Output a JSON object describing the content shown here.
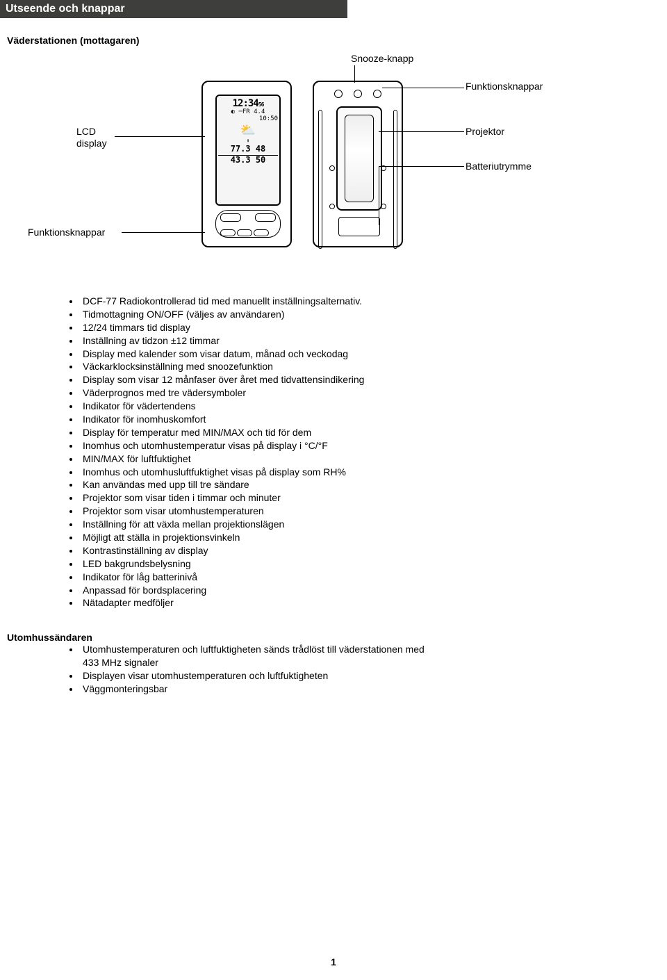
{
  "title": "Utseende och knappar",
  "heading1": "Väderstationen (mottagaren)",
  "callouts": {
    "snooze": "Snooze-knapp",
    "funkbtns": "Funktionsknappar",
    "projektor": "Projektor",
    "battery": "Batteriutrymme",
    "lcd1": "LCD",
    "lcd2": "display",
    "funkbtns2": "Funktionsknappar"
  },
  "features": [
    "DCF-77 Radiokontrollerad tid med manuellt inställningsalternativ.",
    "Tidmottagning ON/OFF (väljes av användaren)",
    "12/24 timmars tid display",
    "Inställning av tidzon ±12 timmar",
    "Display med kalender som visar datum, månad och veckodag",
    "Väckarklocksinställning med snoozefunktion",
    "Display som visar 12 månfaser över året med tidvattensindikering",
    "Väderprognos med tre vädersymboler",
    "Indikator för vädertendens",
    "Indikator för inomhuskomfort",
    "Display för temperatur med MIN/MAX och tid för dem",
    "Inomhus och utomhustemperatur visas på display i °C/°F",
    "MIN/MAX för luftfuktighet",
    "Inomhus och utomhusluftfuktighet visas på display som RH%",
    "Kan användas med upp till tre sändare",
    "Projektor som visar tiden i timmar och minuter",
    "Projektor som visar utomhustemperaturen",
    "Inställning för att växla mellan projektionslägen",
    "Möjligt att ställa in projektionsvinkeln",
    "Kontrastinställning av display",
    "LED bakgrundsbelysning",
    "Indikator för låg batterinivå",
    "Anpassad för bordsplacering",
    "Nätadapter medföljer"
  ],
  "heading2": "Utomhussändaren",
  "sender": [
    "Utomhustemperaturen och luftfuktigheten sänds trådlöst till väderstationen med 433 MHz signaler",
    "Displayen visar utomhustemperaturen och luftfuktigheten",
    "Väggmonteringsbar"
  ],
  "page": "1",
  "colors": {
    "titlebar_bg": "#3e3e3d",
    "titlebar_fg": "#ffffff",
    "text": "#000000"
  }
}
